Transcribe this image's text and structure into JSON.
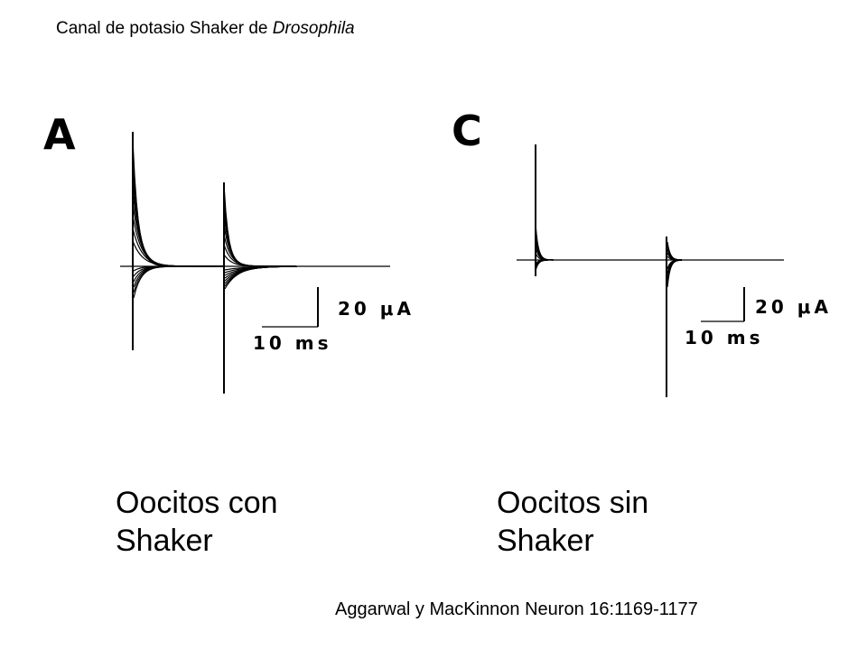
{
  "title": {
    "prefix": "Canal de potasio Shaker de ",
    "species": "Drosophila"
  },
  "panels": [
    {
      "letter": "A",
      "current_scale": "20 μA",
      "time_scale": "10 ms",
      "caption_line1": "Oocitos con",
      "caption_line2": "Shaker"
    },
    {
      "letter": "C",
      "current_scale": "20 μA",
      "time_scale": "10 ms",
      "caption_line1": "Oocitos sin",
      "caption_line2": "Shaker"
    }
  ],
  "citation": "Aggarwal y MacKinnon Neuron 16:1169-1177"
}
